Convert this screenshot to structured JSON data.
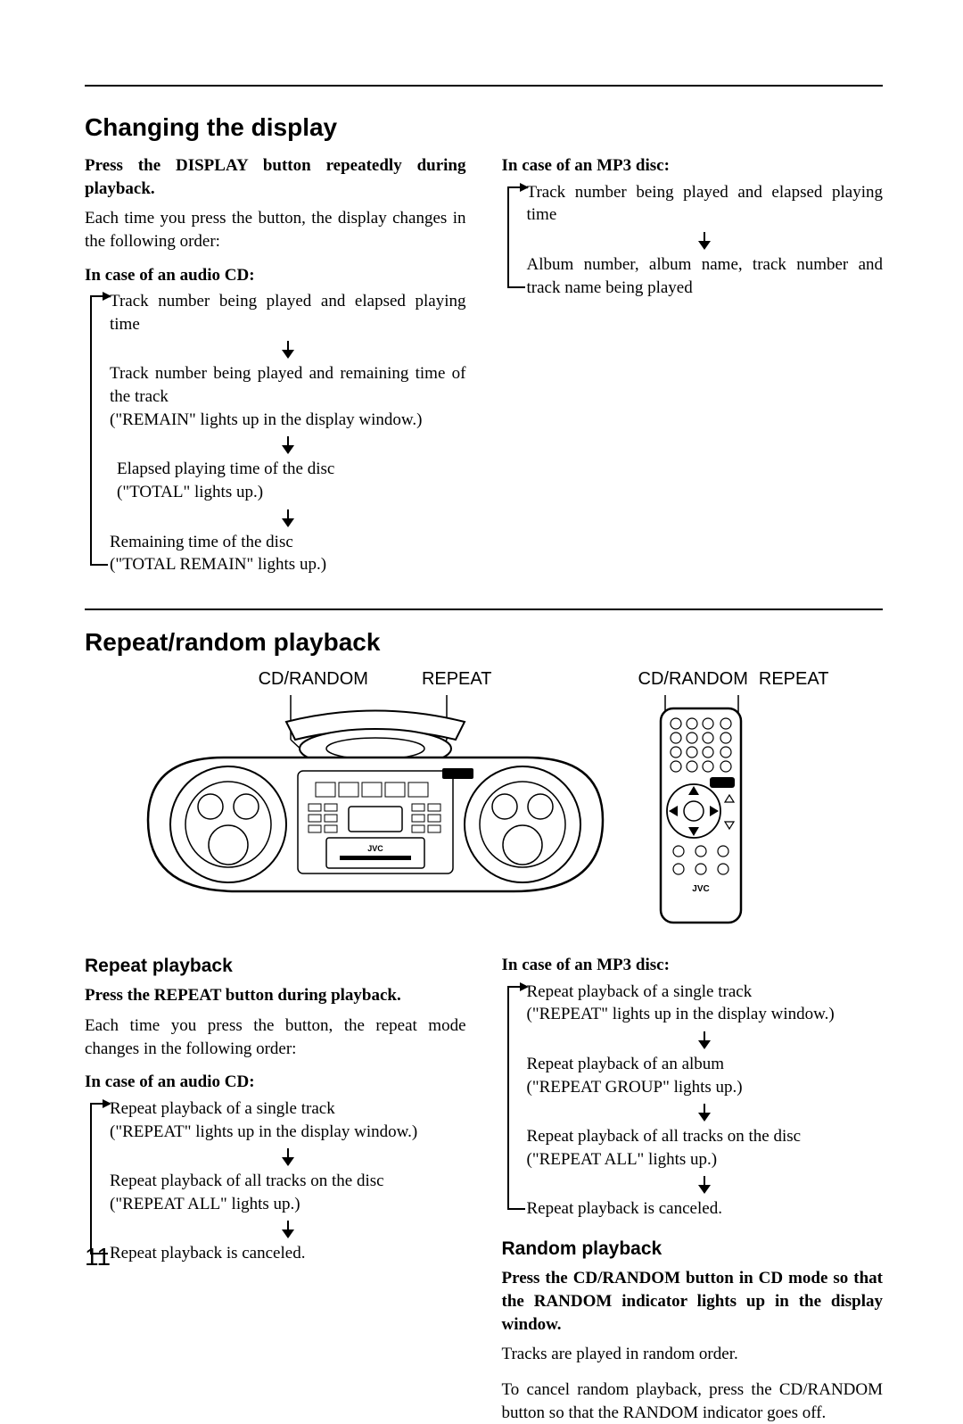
{
  "pageNumber": "11",
  "section1": {
    "title": "Changing the display",
    "left": {
      "instruction": "Press the DISPLAY button repeatedly during playback.",
      "desc": "Each time you press the button, the display changes in the following order:",
      "caseHeading": "In case of an audio CD:",
      "items": [
        "Track number being played and elapsed playing time",
        "Track number being played and remaining time of the track\n(\"REMAIN\" lights up in the display window.)",
        "Elapsed playing time of the disc\n(\"TOTAL\" lights up.)",
        "Remaining time of the disc\n(\"TOTAL REMAIN\" lights up.)"
      ]
    },
    "right": {
      "caseHeading": "In case of an MP3 disc:",
      "items": [
        "Track number being played and elapsed playing time",
        "Album number, album name, track number and track name being played"
      ]
    }
  },
  "section2": {
    "title": "Repeat/random playback",
    "labels": {
      "cdRandom": "CD/RANDOM",
      "repeat": "REPEAT"
    },
    "repeat": {
      "heading": "Repeat playback",
      "instruction": "Press the REPEAT button during playback.",
      "desc": "Each time you press the button, the repeat mode changes in the following order:",
      "audioCD": {
        "caseHeading": "In case of an audio CD:",
        "items": [
          "Repeat playback of a single track\n(\"REPEAT\" lights up in the display window.)",
          "Repeat playback of all tracks on the disc\n(\"REPEAT ALL\" lights up.)",
          "Repeat playback is canceled."
        ]
      },
      "mp3": {
        "caseHeading": "In case of an MP3 disc:",
        "items": [
          "Repeat playback of a single track\n(\"REPEAT\" lights up in the display window.)",
          "Repeat playback of an album\n(\"REPEAT GROUP\" lights up.)",
          "Repeat playback of all tracks on the disc\n(\"REPEAT ALL\" lights up.)",
          "Repeat playback is canceled."
        ]
      }
    },
    "random": {
      "heading": "Random playback",
      "instruction": "Press the CD/RANDOM button in CD mode so that the RANDOM indicator lights up in the display window.",
      "desc": "Tracks are played in random order.",
      "cancel": "To cancel random playback, press the CD/RANDOM button so that the RANDOM indicator goes off."
    }
  }
}
